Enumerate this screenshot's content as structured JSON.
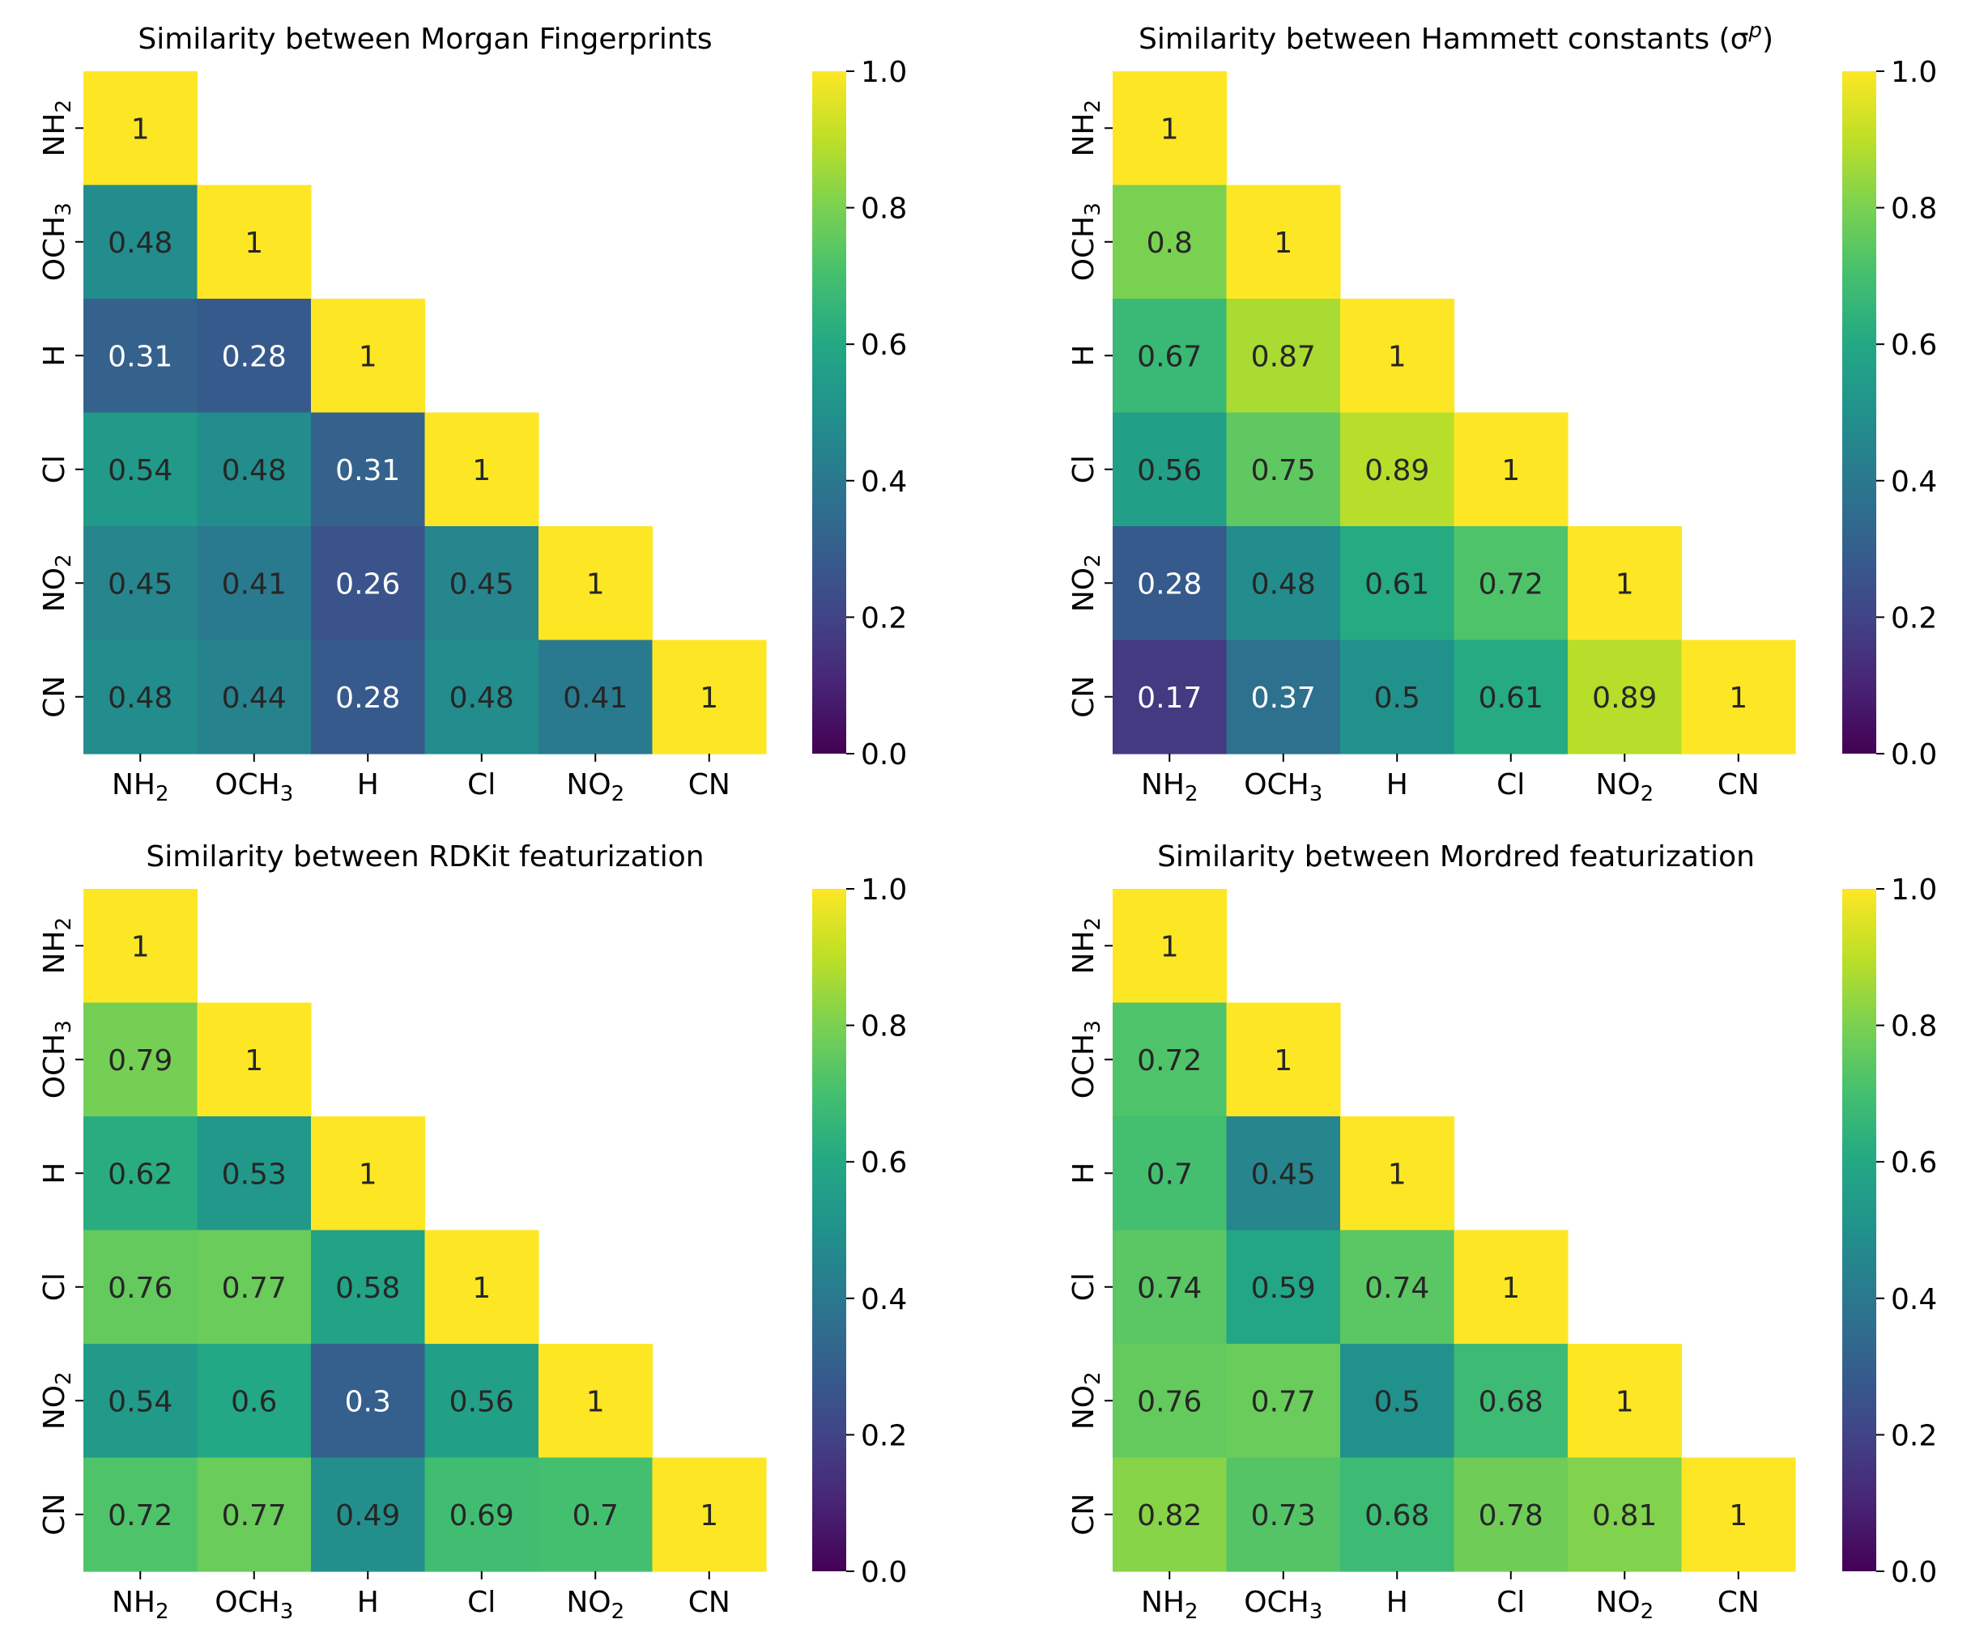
{
  "colormap": "viridis",
  "chart_data": [
    {
      "type": "heatmap",
      "title": "Similarity between Morgan Fingerprints",
      "xlabel": "",
      "ylabel": "",
      "labels": [
        {
          "base": "NH",
          "sub": "2"
        },
        {
          "base": "OCH",
          "sub": "3"
        },
        {
          "base": "H",
          "sub": ""
        },
        {
          "base": "Cl",
          "sub": ""
        },
        {
          "base": "NO",
          "sub": "2"
        },
        {
          "base": "CN",
          "sub": ""
        }
      ],
      "values": [
        [
          1
        ],
        [
          0.48,
          1
        ],
        [
          0.31,
          0.28,
          1
        ],
        [
          0.54,
          0.48,
          0.31,
          1
        ],
        [
          0.45,
          0.41,
          0.26,
          0.45,
          1
        ],
        [
          0.48,
          0.44,
          0.28,
          0.48,
          0.41,
          1
        ]
      ],
      "mask": "upper triangle hidden",
      "colorbar": {
        "vmin": 0.0,
        "vmax": 1.0,
        "ticks": [
          "0.0",
          "0.2",
          "0.4",
          "0.6",
          "0.8",
          "1.0"
        ]
      }
    },
    {
      "type": "heatmap",
      "title": "Similarity between Hammett constants (σ",
      "title_sup": "p",
      "title_end": ")",
      "xlabel": "",
      "ylabel": "",
      "labels": [
        {
          "base": "NH",
          "sub": "2"
        },
        {
          "base": "OCH",
          "sub": "3"
        },
        {
          "base": "H",
          "sub": ""
        },
        {
          "base": "Cl",
          "sub": ""
        },
        {
          "base": "NO",
          "sub": "2"
        },
        {
          "base": "CN",
          "sub": ""
        }
      ],
      "values": [
        [
          1
        ],
        [
          0.8,
          1
        ],
        [
          0.67,
          0.87,
          1
        ],
        [
          0.56,
          0.75,
          0.89,
          1
        ],
        [
          0.28,
          0.48,
          0.61,
          0.72,
          1
        ],
        [
          0.17,
          0.37,
          0.5,
          0.61,
          0.89,
          1
        ]
      ],
      "mask": "upper triangle hidden",
      "colorbar": {
        "vmin": 0.0,
        "vmax": 1.0,
        "ticks": [
          "0.0",
          "0.2",
          "0.4",
          "0.6",
          "0.8",
          "1.0"
        ]
      }
    },
    {
      "type": "heatmap",
      "title": "Similarity between RDKit featurization",
      "xlabel": "",
      "ylabel": "",
      "labels": [
        {
          "base": "NH",
          "sub": "2"
        },
        {
          "base": "OCH",
          "sub": "3"
        },
        {
          "base": "H",
          "sub": ""
        },
        {
          "base": "Cl",
          "sub": ""
        },
        {
          "base": "NO",
          "sub": "2"
        },
        {
          "base": "CN",
          "sub": ""
        }
      ],
      "values": [
        [
          1
        ],
        [
          0.79,
          1
        ],
        [
          0.62,
          0.53,
          1
        ],
        [
          0.76,
          0.77,
          0.58,
          1
        ],
        [
          0.54,
          0.6,
          0.3,
          0.56,
          1
        ],
        [
          0.72,
          0.77,
          0.49,
          0.69,
          0.7,
          1
        ]
      ],
      "mask": "upper triangle hidden",
      "colorbar": {
        "vmin": 0.0,
        "vmax": 1.0,
        "ticks": [
          "0.0",
          "0.2",
          "0.4",
          "0.6",
          "0.8",
          "1.0"
        ]
      }
    },
    {
      "type": "heatmap",
      "title": "Similarity between Mordred featurization",
      "xlabel": "",
      "ylabel": "",
      "labels": [
        {
          "base": "NH",
          "sub": "2"
        },
        {
          "base": "OCH",
          "sub": "3"
        },
        {
          "base": "H",
          "sub": ""
        },
        {
          "base": "Cl",
          "sub": ""
        },
        {
          "base": "NO",
          "sub": "2"
        },
        {
          "base": "CN",
          "sub": ""
        }
      ],
      "values": [
        [
          1
        ],
        [
          0.72,
          1
        ],
        [
          0.7,
          0.45,
          1
        ],
        [
          0.74,
          0.59,
          0.74,
          1
        ],
        [
          0.76,
          0.77,
          0.5,
          0.68,
          1
        ],
        [
          0.82,
          0.73,
          0.68,
          0.78,
          0.81,
          1
        ]
      ],
      "mask": "upper triangle hidden",
      "colorbar": {
        "vmin": 0.0,
        "vmax": 1.0,
        "ticks": [
          "0.0",
          "0.2",
          "0.4",
          "0.6",
          "0.8",
          "1.0"
        ]
      }
    }
  ]
}
